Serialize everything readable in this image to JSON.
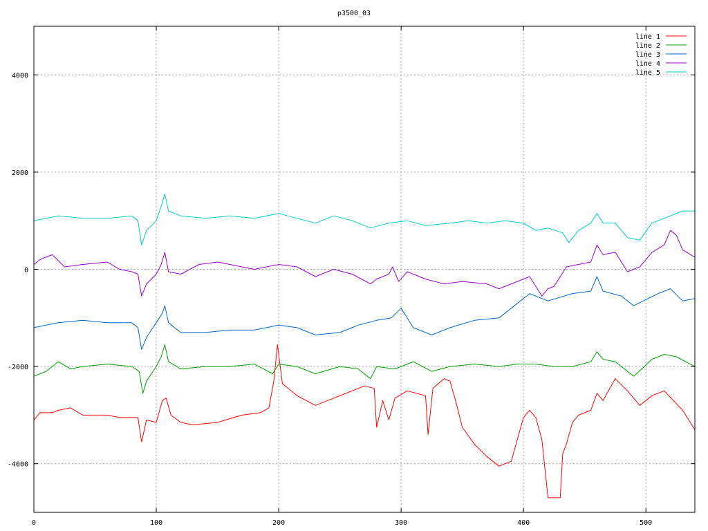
{
  "chart_data": {
    "type": "line",
    "title": "p3500_03",
    "xlim": [
      0,
      540
    ],
    "ylim": [
      -5000,
      5000
    ],
    "x_ticks": [
      0,
      100,
      200,
      300,
      400,
      500
    ],
    "y_ticks": [
      -4000,
      -2000,
      0,
      2000,
      4000
    ],
    "grid": true,
    "legend_position": "top-right",
    "series": [
      {
        "name": "line 1",
        "color": "#ff0000",
        "points": [
          [
            0,
            -3100
          ],
          [
            5,
            -2950
          ],
          [
            15,
            -2950
          ],
          [
            20,
            -2900
          ],
          [
            30,
            -2850
          ],
          [
            40,
            -3000
          ],
          [
            60,
            -3000
          ],
          [
            70,
            -3050
          ],
          [
            85,
            -3050
          ],
          [
            88,
            -3550
          ],
          [
            92,
            -3100
          ],
          [
            100,
            -3150
          ],
          [
            105,
            -2700
          ],
          [
            108,
            -2650
          ],
          [
            112,
            -3000
          ],
          [
            120,
            -3150
          ],
          [
            130,
            -3200
          ],
          [
            150,
            -3150
          ],
          [
            170,
            -3000
          ],
          [
            185,
            -2950
          ],
          [
            192,
            -2850
          ],
          [
            196,
            -2300
          ],
          [
            199,
            -1550
          ],
          [
            203,
            -2350
          ],
          [
            215,
            -2600
          ],
          [
            230,
            -2800
          ],
          [
            240,
            -2700
          ],
          [
            260,
            -2500
          ],
          [
            270,
            -2400
          ],
          [
            278,
            -2450
          ],
          [
            280,
            -3250
          ],
          [
            285,
            -2700
          ],
          [
            290,
            -3100
          ],
          [
            295,
            -2650
          ],
          [
            305,
            -2500
          ],
          [
            320,
            -2600
          ],
          [
            322,
            -3400
          ],
          [
            326,
            -2450
          ],
          [
            335,
            -2250
          ],
          [
            340,
            -2300
          ],
          [
            345,
            -2750
          ],
          [
            350,
            -3250
          ],
          [
            360,
            -3600
          ],
          [
            370,
            -3850
          ],
          [
            380,
            -4050
          ],
          [
            390,
            -3950
          ],
          [
            400,
            -3050
          ],
          [
            405,
            -2900
          ],
          [
            410,
            -3050
          ],
          [
            415,
            -3500
          ],
          [
            420,
            -4700
          ],
          [
            430,
            -4700
          ],
          [
            432,
            -3800
          ],
          [
            435,
            -3600
          ],
          [
            440,
            -3150
          ],
          [
            445,
            -3000
          ],
          [
            455,
            -2900
          ],
          [
            460,
            -2550
          ],
          [
            465,
            -2700
          ],
          [
            475,
            -2250
          ],
          [
            485,
            -2500
          ],
          [
            495,
            -2800
          ],
          [
            505,
            -2600
          ],
          [
            515,
            -2500
          ],
          [
            530,
            -2900
          ],
          [
            540,
            -3300
          ]
        ]
      },
      {
        "name": "line 2",
        "color": "#00a000",
        "points": [
          [
            0,
            -2200
          ],
          [
            10,
            -2100
          ],
          [
            20,
            -1900
          ],
          [
            30,
            -2050
          ],
          [
            40,
            -2000
          ],
          [
            60,
            -1950
          ],
          [
            80,
            -2000
          ],
          [
            86,
            -2100
          ],
          [
            89,
            -2550
          ],
          [
            92,
            -2300
          ],
          [
            100,
            -2000
          ],
          [
            104,
            -1800
          ],
          [
            107,
            -1550
          ],
          [
            110,
            -1900
          ],
          [
            120,
            -2050
          ],
          [
            140,
            -2000
          ],
          [
            160,
            -2000
          ],
          [
            180,
            -1950
          ],
          [
            195,
            -2150
          ],
          [
            200,
            -1950
          ],
          [
            215,
            -2000
          ],
          [
            230,
            -2150
          ],
          [
            250,
            -2000
          ],
          [
            265,
            -2050
          ],
          [
            275,
            -2250
          ],
          [
            280,
            -2000
          ],
          [
            295,
            -2050
          ],
          [
            310,
            -1900
          ],
          [
            325,
            -2100
          ],
          [
            340,
            -2000
          ],
          [
            360,
            -1950
          ],
          [
            380,
            -2000
          ],
          [
            395,
            -1950
          ],
          [
            410,
            -1950
          ],
          [
            425,
            -2000
          ],
          [
            440,
            -2000
          ],
          [
            455,
            -1900
          ],
          [
            460,
            -1700
          ],
          [
            465,
            -1850
          ],
          [
            475,
            -1900
          ],
          [
            490,
            -2200
          ],
          [
            505,
            -1850
          ],
          [
            515,
            -1750
          ],
          [
            525,
            -1800
          ],
          [
            540,
            -2000
          ]
        ]
      },
      {
        "name": "line 3",
        "color": "#0066cc",
        "points": [
          [
            0,
            -1200
          ],
          [
            10,
            -1150
          ],
          [
            20,
            -1100
          ],
          [
            40,
            -1050
          ],
          [
            60,
            -1100
          ],
          [
            80,
            -1100
          ],
          [
            85,
            -1200
          ],
          [
            88,
            -1650
          ],
          [
            92,
            -1400
          ],
          [
            100,
            -1100
          ],
          [
            105,
            -900
          ],
          [
            107,
            -750
          ],
          [
            110,
            -1100
          ],
          [
            120,
            -1300
          ],
          [
            140,
            -1300
          ],
          [
            160,
            -1250
          ],
          [
            180,
            -1250
          ],
          [
            200,
            -1150
          ],
          [
            215,
            -1200
          ],
          [
            230,
            -1350
          ],
          [
            250,
            -1300
          ],
          [
            265,
            -1150
          ],
          [
            280,
            -1050
          ],
          [
            292,
            -1000
          ],
          [
            300,
            -800
          ],
          [
            310,
            -1200
          ],
          [
            325,
            -1350
          ],
          [
            340,
            -1200
          ],
          [
            360,
            -1050
          ],
          [
            380,
            -1000
          ],
          [
            395,
            -700
          ],
          [
            405,
            -500
          ],
          [
            420,
            -650
          ],
          [
            440,
            -500
          ],
          [
            455,
            -450
          ],
          [
            460,
            -150
          ],
          [
            465,
            -450
          ],
          [
            480,
            -550
          ],
          [
            490,
            -750
          ],
          [
            510,
            -500
          ],
          [
            520,
            -400
          ],
          [
            530,
            -650
          ],
          [
            540,
            -600
          ]
        ]
      },
      {
        "name": "line 4",
        "color": "#9900cc",
        "points": [
          [
            0,
            100
          ],
          [
            5,
            200
          ],
          [
            15,
            300
          ],
          [
            25,
            50
          ],
          [
            40,
            100
          ],
          [
            60,
            150
          ],
          [
            70,
            0
          ],
          [
            80,
            -50
          ],
          [
            85,
            -100
          ],
          [
            88,
            -550
          ],
          [
            92,
            -300
          ],
          [
            100,
            -100
          ],
          [
            104,
            100
          ],
          [
            107,
            350
          ],
          [
            110,
            -50
          ],
          [
            120,
            -100
          ],
          [
            135,
            100
          ],
          [
            150,
            150
          ],
          [
            170,
            50
          ],
          [
            180,
            0
          ],
          [
            200,
            100
          ],
          [
            215,
            50
          ],
          [
            230,
            -150
          ],
          [
            245,
            0
          ],
          [
            260,
            -100
          ],
          [
            275,
            -300
          ],
          [
            280,
            -200
          ],
          [
            290,
            -100
          ],
          [
            293,
            50
          ],
          [
            298,
            -250
          ],
          [
            305,
            -50
          ],
          [
            320,
            -200
          ],
          [
            335,
            -300
          ],
          [
            350,
            -250
          ],
          [
            370,
            -300
          ],
          [
            380,
            -400
          ],
          [
            395,
            -250
          ],
          [
            405,
            -150
          ],
          [
            410,
            -350
          ],
          [
            415,
            -550
          ],
          [
            420,
            -400
          ],
          [
            425,
            -350
          ],
          [
            430,
            -150
          ],
          [
            435,
            50
          ],
          [
            445,
            100
          ],
          [
            455,
            150
          ],
          [
            460,
            500
          ],
          [
            465,
            300
          ],
          [
            475,
            350
          ],
          [
            485,
            -50
          ],
          [
            495,
            50
          ],
          [
            505,
            350
          ],
          [
            515,
            500
          ],
          [
            520,
            800
          ],
          [
            525,
            700
          ],
          [
            530,
            400
          ],
          [
            540,
            250
          ]
        ]
      },
      {
        "name": "line 5",
        "color": "#00cccc",
        "points": [
          [
            0,
            1000
          ],
          [
            10,
            1050
          ],
          [
            20,
            1100
          ],
          [
            40,
            1050
          ],
          [
            60,
            1050
          ],
          [
            80,
            1100
          ],
          [
            85,
            1000
          ],
          [
            88,
            500
          ],
          [
            92,
            800
          ],
          [
            100,
            1000
          ],
          [
            104,
            1300
          ],
          [
            107,
            1550
          ],
          [
            110,
            1200
          ],
          [
            120,
            1100
          ],
          [
            140,
            1050
          ],
          [
            160,
            1100
          ],
          [
            180,
            1050
          ],
          [
            200,
            1150
          ],
          [
            215,
            1050
          ],
          [
            230,
            950
          ],
          [
            245,
            1100
          ],
          [
            260,
            1000
          ],
          [
            275,
            850
          ],
          [
            290,
            950
          ],
          [
            305,
            1000
          ],
          [
            320,
            900
          ],
          [
            340,
            950
          ],
          [
            355,
            1000
          ],
          [
            370,
            950
          ],
          [
            385,
            1000
          ],
          [
            400,
            950
          ],
          [
            410,
            800
          ],
          [
            420,
            850
          ],
          [
            432,
            750
          ],
          [
            437,
            550
          ],
          [
            445,
            800
          ],
          [
            455,
            950
          ],
          [
            460,
            1150
          ],
          [
            465,
            950
          ],
          [
            475,
            950
          ],
          [
            485,
            650
          ],
          [
            495,
            600
          ],
          [
            505,
            950
          ],
          [
            520,
            1100
          ],
          [
            530,
            1200
          ],
          [
            540,
            1200
          ]
        ]
      }
    ]
  }
}
